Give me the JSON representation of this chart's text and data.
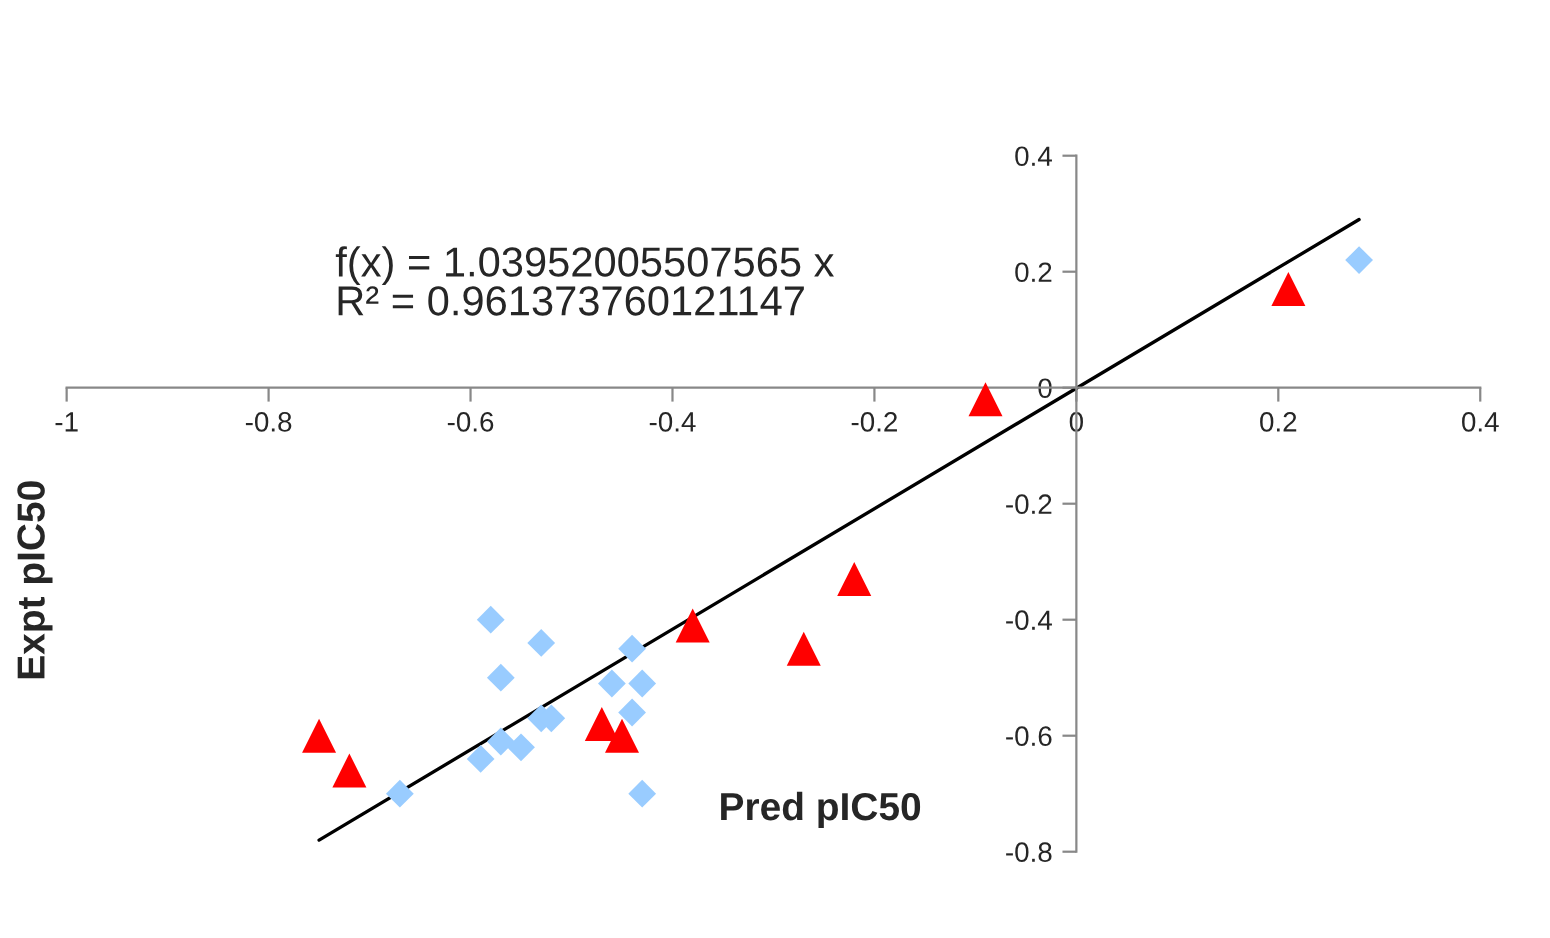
{
  "chart_data": {
    "type": "scatter",
    "xlabel": "Pred pIC50",
    "ylabel": "Expt pIC50",
    "annotations": [
      "f(x) = 1.03952005507565 x\nR² = 0.961373760121147"
    ],
    "xlim": [
      -1,
      0.4
    ],
    "xticks": [
      -1,
      -0.8,
      -0.6,
      -0.4,
      -0.2,
      0,
      0.2,
      0.4
    ],
    "ylim": [
      -0.8,
      0.4
    ],
    "yticks": [
      -0.8,
      -0.6,
      -0.4,
      -0.2,
      0,
      0.2,
      0.4
    ],
    "grid": false,
    "legend": false,
    "series": [
      {
        "marker": "diamond",
        "color": "#99ccff",
        "x": [
          -0.58,
          -0.53,
          -0.57,
          -0.44,
          -0.46,
          -0.43,
          -0.44,
          -0.53,
          -0.52,
          -0.57,
          -0.55,
          -0.59,
          -0.67,
          -0.43,
          0.28
        ],
        "values": [
          -0.4,
          -0.44,
          -0.5,
          -0.45,
          -0.51,
          -0.51,
          -0.56,
          -0.57,
          -0.57,
          -0.61,
          -0.62,
          -0.64,
          -0.7,
          -0.7,
          0.22
        ]
      },
      {
        "marker": "triangle",
        "color": "#ff0000",
        "x": [
          -0.75,
          -0.72,
          -0.47,
          -0.45,
          -0.38,
          -0.27,
          -0.22,
          -0.09,
          0.21
        ],
        "values": [
          -0.6,
          -0.66,
          -0.58,
          -0.6,
          -0.41,
          -0.45,
          -0.33,
          -0.02,
          0.17
        ]
      },
      {
        "type": "line",
        "marker": "none",
        "color": "#000000",
        "x": [
          -0.75,
          0.28
        ],
        "values": [
          -0.78,
          0.29
        ]
      }
    ]
  }
}
